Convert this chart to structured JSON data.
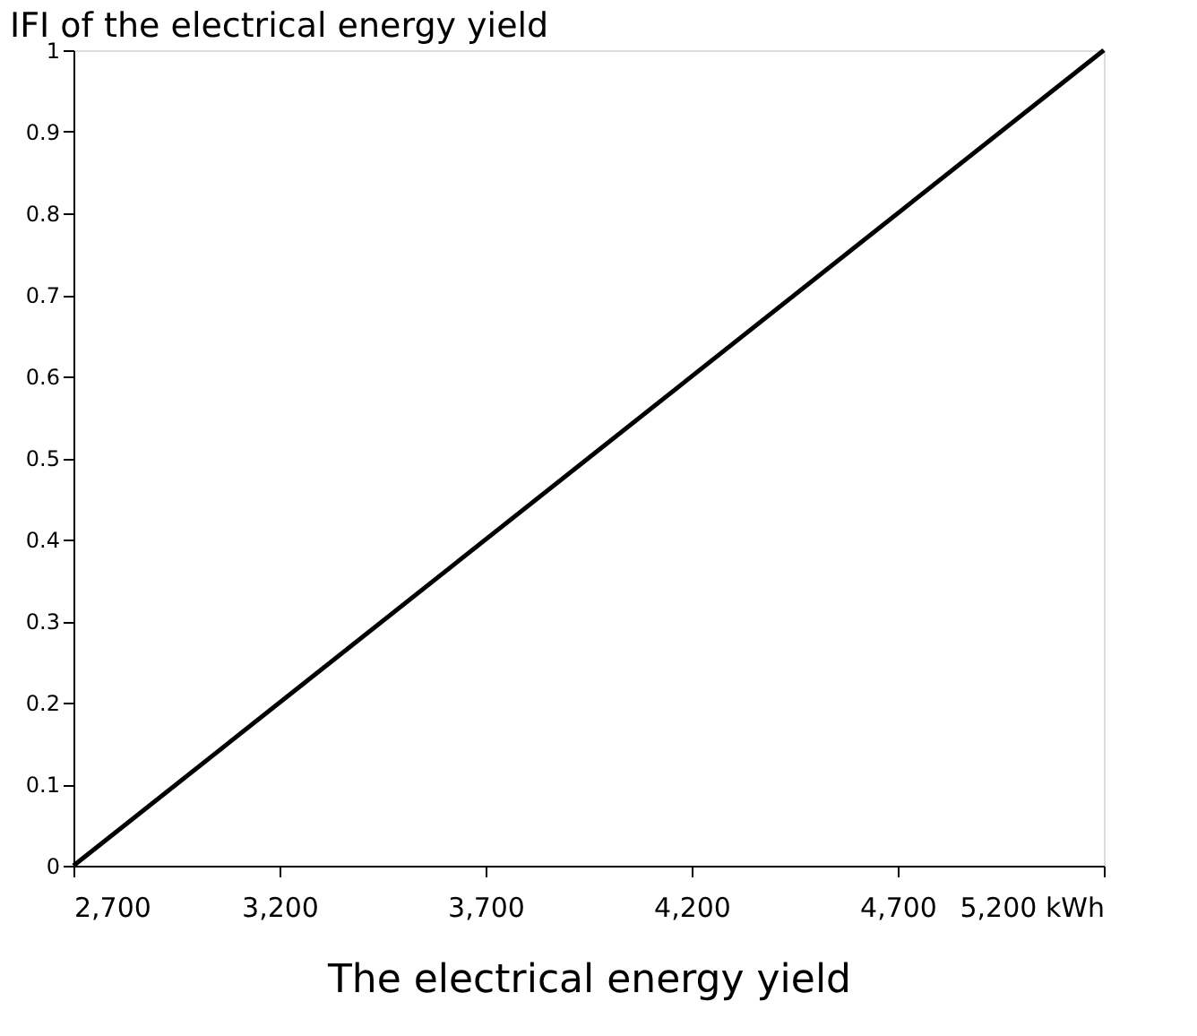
{
  "chart_data": {
    "type": "line",
    "xlabel": "The electrical energy yield",
    "ylabel": "IFI of the electrical energy yield",
    "x": [
      2700,
      5200
    ],
    "series": [
      {
        "color": "#000000",
        "values": [
          0,
          1
        ]
      }
    ],
    "xlim": [
      2700,
      5200
    ],
    "ylim": [
      0,
      1
    ],
    "xticks": [
      {
        "value": 2700,
        "label": "2,700"
      },
      {
        "value": 3200,
        "label": "3,200"
      },
      {
        "value": 3700,
        "label": "3,700"
      },
      {
        "value": 4200,
        "label": "4,200"
      },
      {
        "value": 4700,
        "label": "4,700"
      },
      {
        "value": 5200,
        "label": "5,200 kWh"
      }
    ],
    "yticks": [
      0,
      0.1,
      0.2,
      0.3,
      0.4,
      0.5,
      0.6,
      0.7,
      0.8,
      0.9,
      1
    ],
    "grid": false,
    "legend": false,
    "marker": "none",
    "line_style": "solid"
  }
}
